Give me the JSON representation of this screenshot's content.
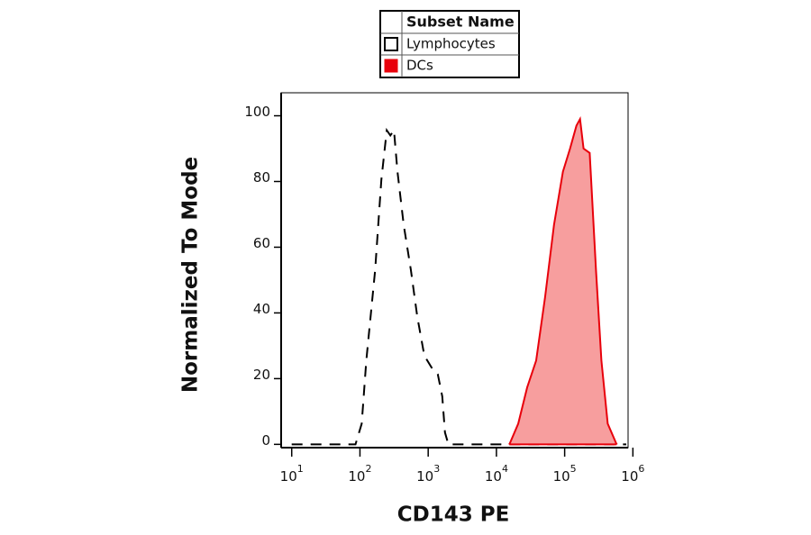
{
  "chart_data": {
    "type": "line",
    "legend_title": "Subset Name",
    "xlabel": "CD143 PE",
    "ylabel": "Normalized To Mode",
    "xscale": "log",
    "xlim": [
      7,
      850000
    ],
    "xticks": [
      {
        "value": 10,
        "label": "10",
        "power": "1"
      },
      {
        "value": 100,
        "label": "10",
        "power": "2"
      },
      {
        "value": 1000,
        "label": "10",
        "power": "3"
      },
      {
        "value": 10000,
        "label": "10",
        "power": "4"
      },
      {
        "value": 100000,
        "label": "10",
        "power": "5"
      },
      {
        "value": 1000000,
        "label": "10",
        "power": "6"
      }
    ],
    "ylim": [
      -1,
      107
    ],
    "yticks": [
      0,
      20,
      40,
      60,
      80,
      100
    ],
    "series": [
      {
        "name": "Lymphocytes",
        "color": "#000000",
        "dash": true,
        "fill": null,
        "x": [
          10,
          86,
          106,
          124,
          167,
          206,
          247,
          279,
          315,
          355,
          438,
          558,
          690,
          879,
          1120,
          1380,
          1610,
          1760,
          1980,
          800000
        ],
        "values": [
          0,
          0,
          6.3,
          25.5,
          53,
          80.5,
          95.6,
          94,
          95.6,
          83,
          66.8,
          53,
          39,
          27,
          23.4,
          21.4,
          14.6,
          3.6,
          0,
          0
        ]
      },
      {
        "name": "DCs",
        "color": "#e8000b",
        "dash": false,
        "fill": "#f79e9e",
        "x": [
          15500,
          20900,
          28200,
          38200,
          51600,
          69800,
          94400,
          120000,
          149000,
          168000,
          189000,
          233000,
          288000,
          346000,
          427000,
          577000
        ],
        "values": [
          0,
          6.3,
          17.3,
          25.5,
          44.8,
          66.8,
          83,
          90,
          97,
          99,
          90,
          88.7,
          53,
          25.5,
          6.3,
          0
        ]
      }
    ]
  }
}
